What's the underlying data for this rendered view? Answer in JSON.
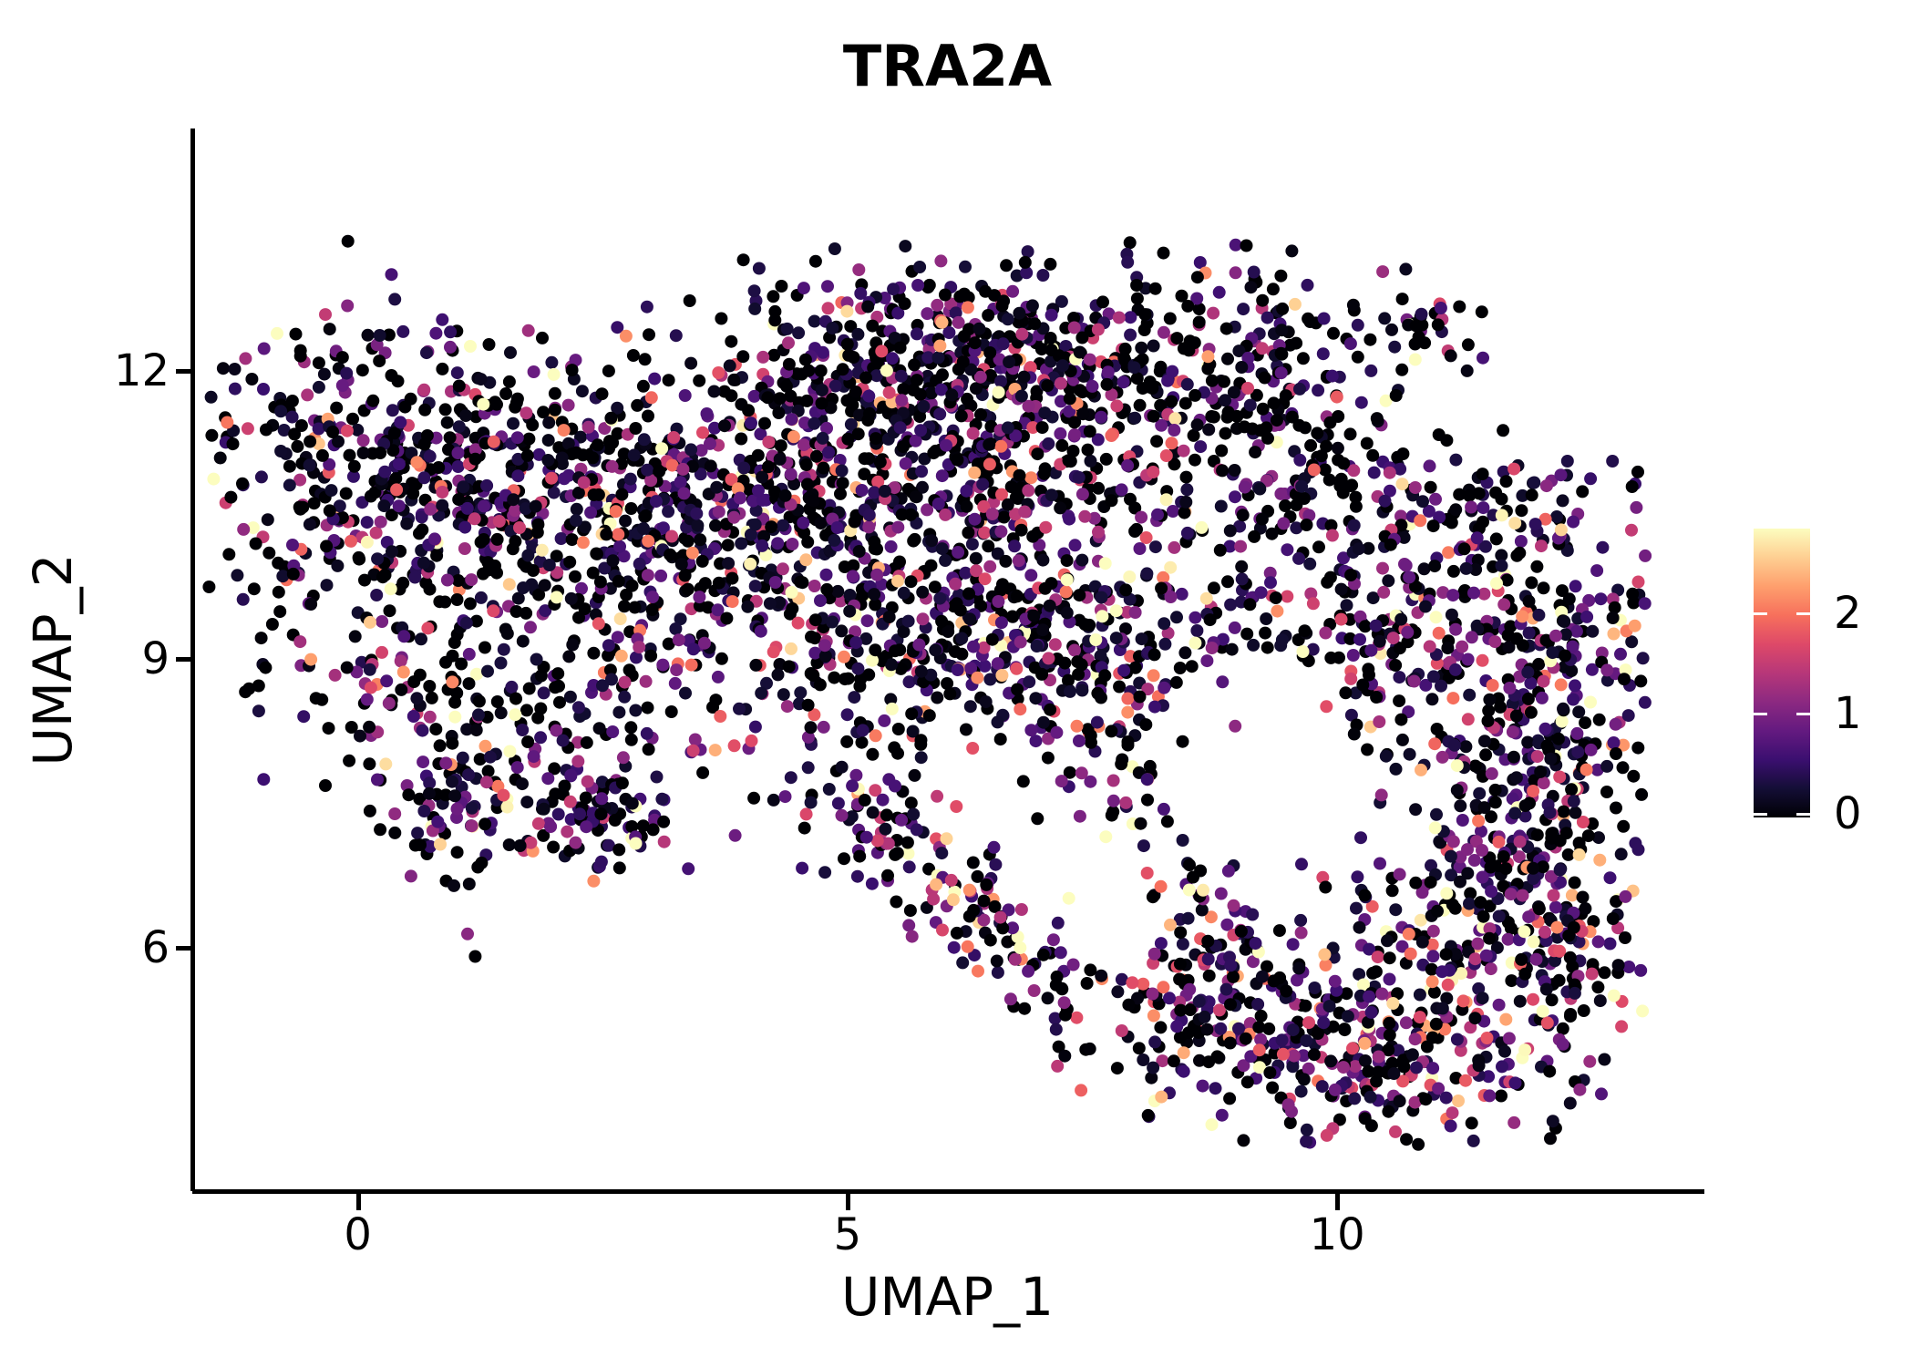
{
  "title": "TRA2A",
  "x_axis": {
    "label": "UMAP_1"
  },
  "y_axis": {
    "label": "UMAP_2"
  },
  "colorbar": {
    "ticks": [
      0,
      1,
      2
    ],
    "position": "right"
  },
  "colors": {
    "background": "#ffffff",
    "axis": "#000000",
    "text": "#000000",
    "colorbar_tick": "#ffffff"
  },
  "chart_data": {
    "type": "scatter",
    "title": "TRA2A",
    "xlabel": "UMAP_1",
    "ylabel": "UMAP_2",
    "x_ticks": [
      0,
      5,
      10
    ],
    "y_ticks": [
      6,
      9,
      12
    ],
    "xlim": [
      -1.69,
      13.73
    ],
    "ylim": [
      3.47,
      14.52
    ],
    "grid": false,
    "legend": {
      "type": "colorbar",
      "position": "right",
      "ticks": [
        0,
        1,
        2
      ],
      "vmax": 2.88
    },
    "colormap": {
      "name": "magma",
      "stops": [
        "#000004",
        "#140e36",
        "#3b0f70",
        "#641a80",
        "#8c2981",
        "#b73779",
        "#de4968",
        "#f7705c",
        "#fe9f6d",
        "#fecf92",
        "#fcfdbf"
      ]
    },
    "point_radius_px": 7,
    "n_points_approx": 4950,
    "expression_model": {
      "zero_fraction": 0.32,
      "exp_mean": 0.85,
      "vmax": 2.9
    },
    "hole": {
      "cx": 9.2,
      "cy": 7.8,
      "rx": 1.0,
      "ry": 1.3,
      "reject_prob": 0.9
    },
    "clip": {
      "xmin": -1.55,
      "xmax": 13.15,
      "ymin": 3.95,
      "ymax": 13.35
    },
    "seed": 1337,
    "clusters": [
      {
        "name": "left-main",
        "cx": 0.6,
        "cy": 10.9,
        "sx": 1.05,
        "sy": 0.75,
        "n": 520
      },
      {
        "name": "left-mid-bridge",
        "cx": 2.4,
        "cy": 10.4,
        "sx": 0.8,
        "sy": 0.75,
        "n": 230
      },
      {
        "name": "bridge-upper",
        "cx": 3.6,
        "cy": 10.7,
        "sx": 0.7,
        "sy": 0.75,
        "n": 170
      },
      {
        "name": "left-lower-sparse",
        "cx": 0.45,
        "cy": 8.9,
        "sx": 0.85,
        "sy": 0.5,
        "n": 100
      },
      {
        "name": "left-arm-clump-a",
        "cx": 1.0,
        "cy": 7.5,
        "sx": 0.35,
        "sy": 0.4,
        "n": 80
      },
      {
        "name": "left-arm-clump-b",
        "cx": 2.4,
        "cy": 7.4,
        "sx": 0.45,
        "sy": 0.35,
        "n": 100,
        "zf": 0.24,
        "mean": 0.95
      },
      {
        "name": "left-arm-connector",
        "cx": 1.7,
        "cy": 8.3,
        "sx": 0.6,
        "sy": 0.5,
        "n": 60
      },
      {
        "name": "mid-top",
        "cx": 5.6,
        "cy": 12.0,
        "sx": 1.0,
        "sy": 0.62,
        "n": 430,
        "zf": 0.38,
        "mean": 0.7
      },
      {
        "name": "mid-top-right",
        "cx": 6.9,
        "cy": 11.9,
        "sx": 0.6,
        "sy": 0.6,
        "n": 140,
        "zf": 0.38,
        "mean": 0.7
      },
      {
        "name": "mid-upper-left",
        "cx": 4.9,
        "cy": 10.6,
        "sx": 0.8,
        "sy": 0.6,
        "n": 190
      },
      {
        "name": "mid-upper-right",
        "cx": 6.3,
        "cy": 10.5,
        "sx": 0.7,
        "sy": 0.6,
        "n": 160
      },
      {
        "name": "mid-lower-dense",
        "cx": 7.0,
        "cy": 9.0,
        "sx": 0.75,
        "sy": 0.5,
        "n": 260,
        "zf": 0.26
      },
      {
        "name": "mid-lower-left",
        "cx": 5.5,
        "cy": 9.3,
        "sx": 0.6,
        "sy": 0.5,
        "n": 110
      },
      {
        "name": "tail",
        "type": "line",
        "x1": 5.15,
        "y1": 7.55,
        "x2": 7.3,
        "y2": 5.3,
        "w": 0.28,
        "n": 140,
        "zf": 0.25,
        "mean": 1.0
      },
      {
        "name": "top-right",
        "cx": 8.8,
        "cy": 12.1,
        "sx": 0.8,
        "sy": 0.55,
        "n": 200,
        "zf": 0.4,
        "mean": 0.75
      },
      {
        "name": "top-bridge",
        "cx": 7.6,
        "cy": 11.7,
        "sx": 0.5,
        "sy": 0.55,
        "n": 70,
        "zf": 0.38
      },
      {
        "name": "dark-clump",
        "cx": 10.9,
        "cy": 12.45,
        "sx": 0.22,
        "sy": 0.17,
        "n": 28,
        "zf": 0.5,
        "mean": 1.3
      },
      {
        "name": "right-top-bridge",
        "cx": 9.9,
        "cy": 11.1,
        "sx": 0.55,
        "sy": 0.5,
        "n": 85,
        "zf": 0.4
      },
      {
        "name": "right-top-arm",
        "cx": 11.3,
        "cy": 10.3,
        "sx": 0.8,
        "sy": 0.5,
        "n": 140
      },
      {
        "name": "right-edge-upper",
        "cx": 12.1,
        "cy": 8.7,
        "sx": 0.55,
        "sy": 0.95,
        "n": 260,
        "zf": 0.28,
        "mean": 0.9
      },
      {
        "name": "right-edge-lower",
        "cx": 11.7,
        "cy": 6.9,
        "sx": 0.7,
        "sy": 0.95,
        "n": 290,
        "zf": 0.28,
        "mean": 0.9
      },
      {
        "name": "bottom-right-main",
        "cx": 10.1,
        "cy": 5.0,
        "sx": 1.05,
        "sy": 0.62,
        "n": 390,
        "zf": 0.22,
        "mean": 0.95
      },
      {
        "name": "bottom-right-left-lobe",
        "cx": 8.6,
        "cy": 5.6,
        "sx": 0.55,
        "sy": 0.45,
        "n": 110,
        "zf": 0.22,
        "mean": 0.95
      },
      {
        "name": "inner-upper",
        "cx": 9.3,
        "cy": 9.5,
        "sx": 0.7,
        "sy": 0.6,
        "n": 110
      },
      {
        "name": "inner-upper-left",
        "cx": 8.3,
        "cy": 10.4,
        "sx": 0.6,
        "sy": 0.5,
        "n": 80
      },
      {
        "name": "inner-right",
        "cx": 10.6,
        "cy": 9.0,
        "sx": 0.45,
        "sy": 0.6,
        "n": 90
      },
      {
        "name": "bridge-left-mid-lower",
        "cx": 4.0,
        "cy": 9.4,
        "sx": 0.6,
        "sy": 0.6,
        "n": 90
      },
      {
        "name": "left-sparse-east",
        "cx": 3.0,
        "cy": 8.6,
        "sx": 0.5,
        "sy": 0.5,
        "n": 55
      },
      {
        "name": "below-mid-sparse",
        "cx": 5.0,
        "cy": 8.1,
        "sx": 0.5,
        "sy": 0.55,
        "n": 70
      },
      {
        "name": "mid-sparse-south",
        "cx": 7.8,
        "cy": 8.0,
        "sx": 0.4,
        "sy": 0.5,
        "n": 55
      },
      {
        "name": "bridge-to-bottom",
        "cx": 8.9,
        "cy": 6.8,
        "sx": 0.4,
        "sy": 0.5,
        "n": 55
      },
      {
        "name": "right-bottom-edge",
        "cx": 12.4,
        "cy": 6.0,
        "sx": 0.4,
        "sy": 0.55,
        "n": 80,
        "zf": 0.25,
        "mean": 0.95
      }
    ]
  }
}
